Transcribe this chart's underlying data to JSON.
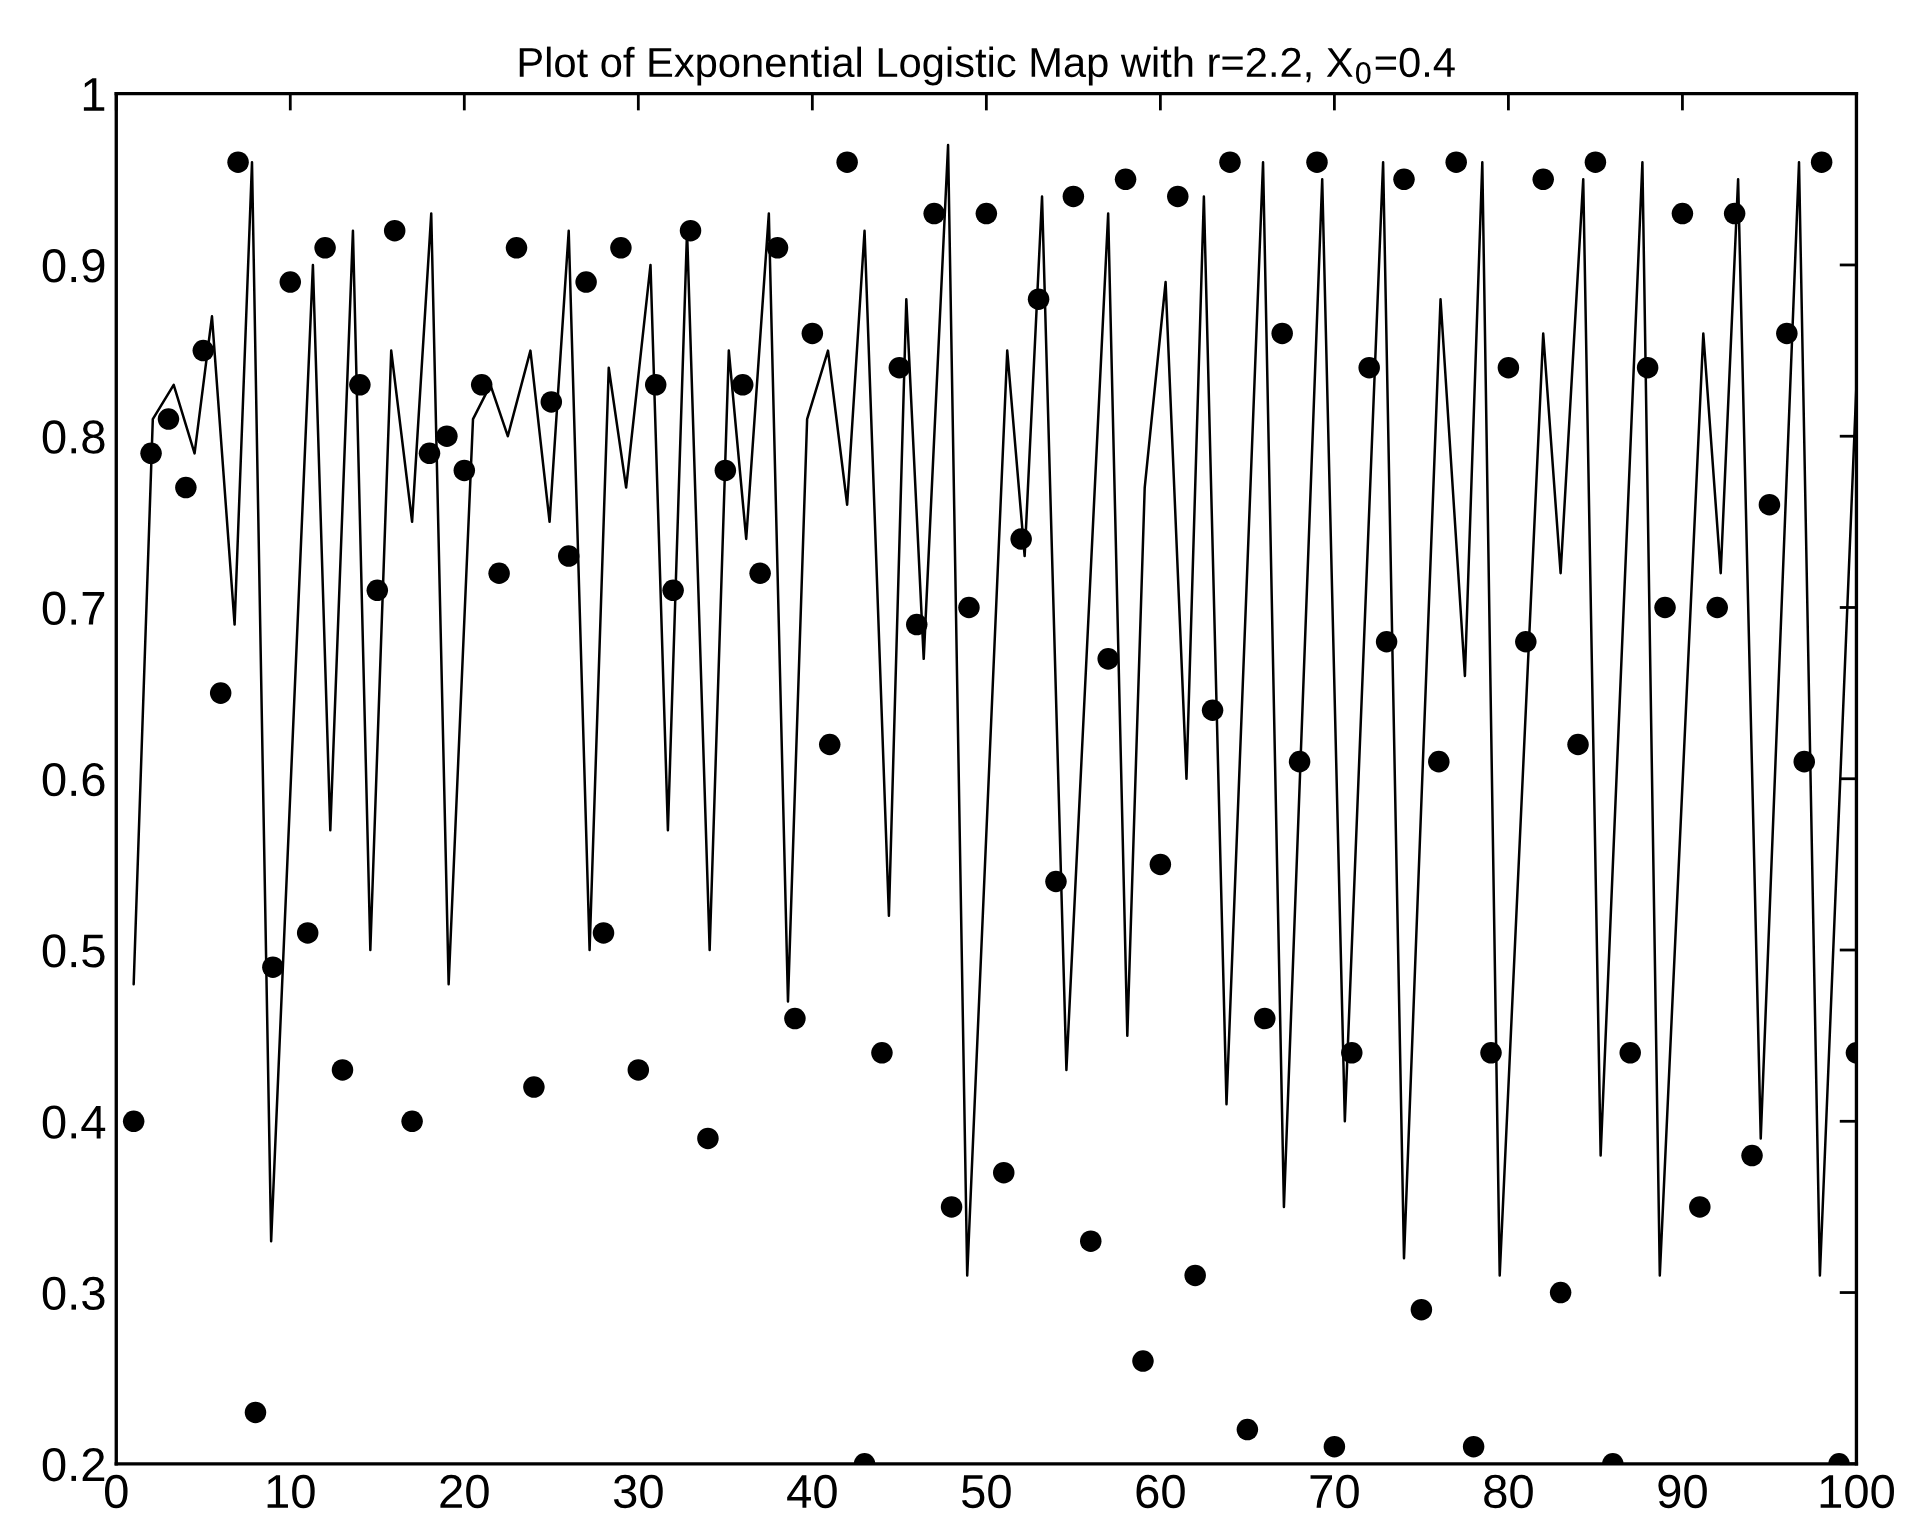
{
  "chart_data": {
    "type": "scatter",
    "title": "Plot of Exponential Logistic Map with r=2.2, X$_{0}$=0.4",
    "xlim": [
      0,
      100
    ],
    "xticks": [
      0,
      10,
      20,
      30,
      40,
      50,
      60,
      70,
      80,
      90,
      100
    ],
    "ylim": [
      0.2,
      1
    ],
    "yticks": [
      0.2,
      0.3,
      0.4,
      0.5,
      0.6,
      0.7,
      0.8,
      0.9,
      1
    ],
    "grid": false,
    "legend": false,
    "series": [
      {
        "marker": "circle",
        "color": "#000000",
        "x": [
          1,
          2,
          3,
          4,
          5,
          6,
          7,
          8,
          9,
          10,
          11,
          12,
          13,
          14,
          15,
          16,
          17,
          18,
          19,
          20,
          21,
          22,
          23,
          24,
          25,
          26,
          27,
          28,
          29,
          30,
          31,
          32,
          33,
          34,
          35,
          36,
          37,
          38,
          39,
          40,
          41,
          42,
          43,
          44,
          45,
          46,
          47,
          48,
          49,
          50,
          51,
          52,
          53,
          54,
          55,
          56,
          57,
          58,
          59,
          60,
          61,
          62,
          63,
          64,
          65,
          66,
          67,
          68,
          69,
          70,
          71,
          72,
          73,
          74,
          75,
          76,
          77,
          78,
          79,
          80,
          81,
          82,
          83,
          84,
          85,
          86,
          87,
          88,
          89,
          90,
          91,
          92,
          93,
          94,
          95,
          96,
          97,
          98,
          99,
          100
        ],
        "values": [
          0.4,
          0.79,
          0.81,
          0.77,
          0.85,
          0.65,
          0.96,
          0.23,
          0.49,
          0.89,
          0.51,
          0.91,
          0.43,
          0.83,
          0.71,
          0.92,
          0.4,
          0.79,
          0.8,
          0.78,
          0.83,
          0.72,
          0.91,
          0.42,
          0.82,
          0.73,
          0.89,
          0.51,
          0.91,
          0.43,
          0.83,
          0.71,
          0.92,
          0.39,
          0.78,
          0.83,
          0.72,
          0.91,
          0.46,
          0.86,
          0.62,
          0.96,
          0.2,
          0.44,
          0.84,
          0.69,
          0.93,
          0.35,
          0.7,
          0.93,
          0.37,
          0.74,
          0.88,
          0.54,
          0.94,
          0.33,
          0.67,
          0.95,
          0.26,
          0.55,
          0.94,
          0.31,
          0.64,
          0.96,
          0.22,
          0.46,
          0.86,
          0.61,
          0.96,
          0.21,
          0.44,
          0.84,
          0.68,
          0.95,
          0.29,
          0.61,
          0.96,
          0.21,
          0.44,
          0.84,
          0.68,
          0.95,
          0.3,
          0.62,
          0.96,
          0.2,
          0.44,
          0.84,
          0.7,
          0.93,
          0.35,
          0.7,
          0.93,
          0.38,
          0.76,
          0.86,
          0.61,
          0.96,
          0.2,
          0.44
        ]
      },
      {
        "type": "line",
        "line_style": "solid",
        "color": "#000000",
        "x": [
          1.0,
          2.1,
          3.3,
          4.5,
          5.5,
          6.8,
          7.8,
          8.9,
          11.3,
          12.3,
          13.6,
          14.6,
          15.8,
          17.0,
          18.1,
          19.1,
          20.5,
          21.5,
          22.5,
          23.8,
          24.9,
          26.0,
          27.2,
          28.3,
          29.3,
          30.7,
          31.7,
          32.8,
          34.1,
          35.2,
          36.2,
          37.5,
          38.6,
          39.7,
          40.9,
          42.0,
          43.0,
          44.4,
          45.4,
          46.4,
          47.8,
          48.9,
          51.2,
          52.2,
          53.2,
          54.6,
          57.0,
          58.1,
          59.1,
          60.3,
          61.5,
          62.5,
          63.8,
          65.9,
          67.1,
          69.3,
          70.6,
          72.8,
          74.0,
          76.1,
          77.5,
          78.5,
          79.5,
          82.0,
          83.0,
          84.3,
          85.3,
          87.7,
          88.7,
          91.2,
          92.2,
          93.2,
          94.5,
          96.7,
          97.9,
          100
        ],
        "values": [
          0.48,
          0.81,
          0.83,
          0.79,
          0.87,
          0.69,
          0.96,
          0.33,
          0.9,
          0.57,
          0.92,
          0.5,
          0.85,
          0.75,
          0.93,
          0.48,
          0.81,
          0.83,
          0.8,
          0.85,
          0.75,
          0.92,
          0.5,
          0.84,
          0.77,
          0.9,
          0.57,
          0.92,
          0.5,
          0.85,
          0.74,
          0.93,
          0.47,
          0.81,
          0.85,
          0.76,
          0.92,
          0.52,
          0.88,
          0.67,
          0.97,
          0.31,
          0.85,
          0.73,
          0.94,
          0.43,
          0.93,
          0.45,
          0.77,
          0.89,
          0.6,
          0.94,
          0.41,
          0.96,
          0.35,
          0.95,
          0.4,
          0.96,
          0.32,
          0.88,
          0.66,
          0.96,
          0.31,
          0.86,
          0.72,
          0.95,
          0.38,
          0.96,
          0.31,
          0.86,
          0.72,
          0.95,
          0.39,
          0.96,
          0.31,
          0.83
        ]
      }
    ]
  }
}
